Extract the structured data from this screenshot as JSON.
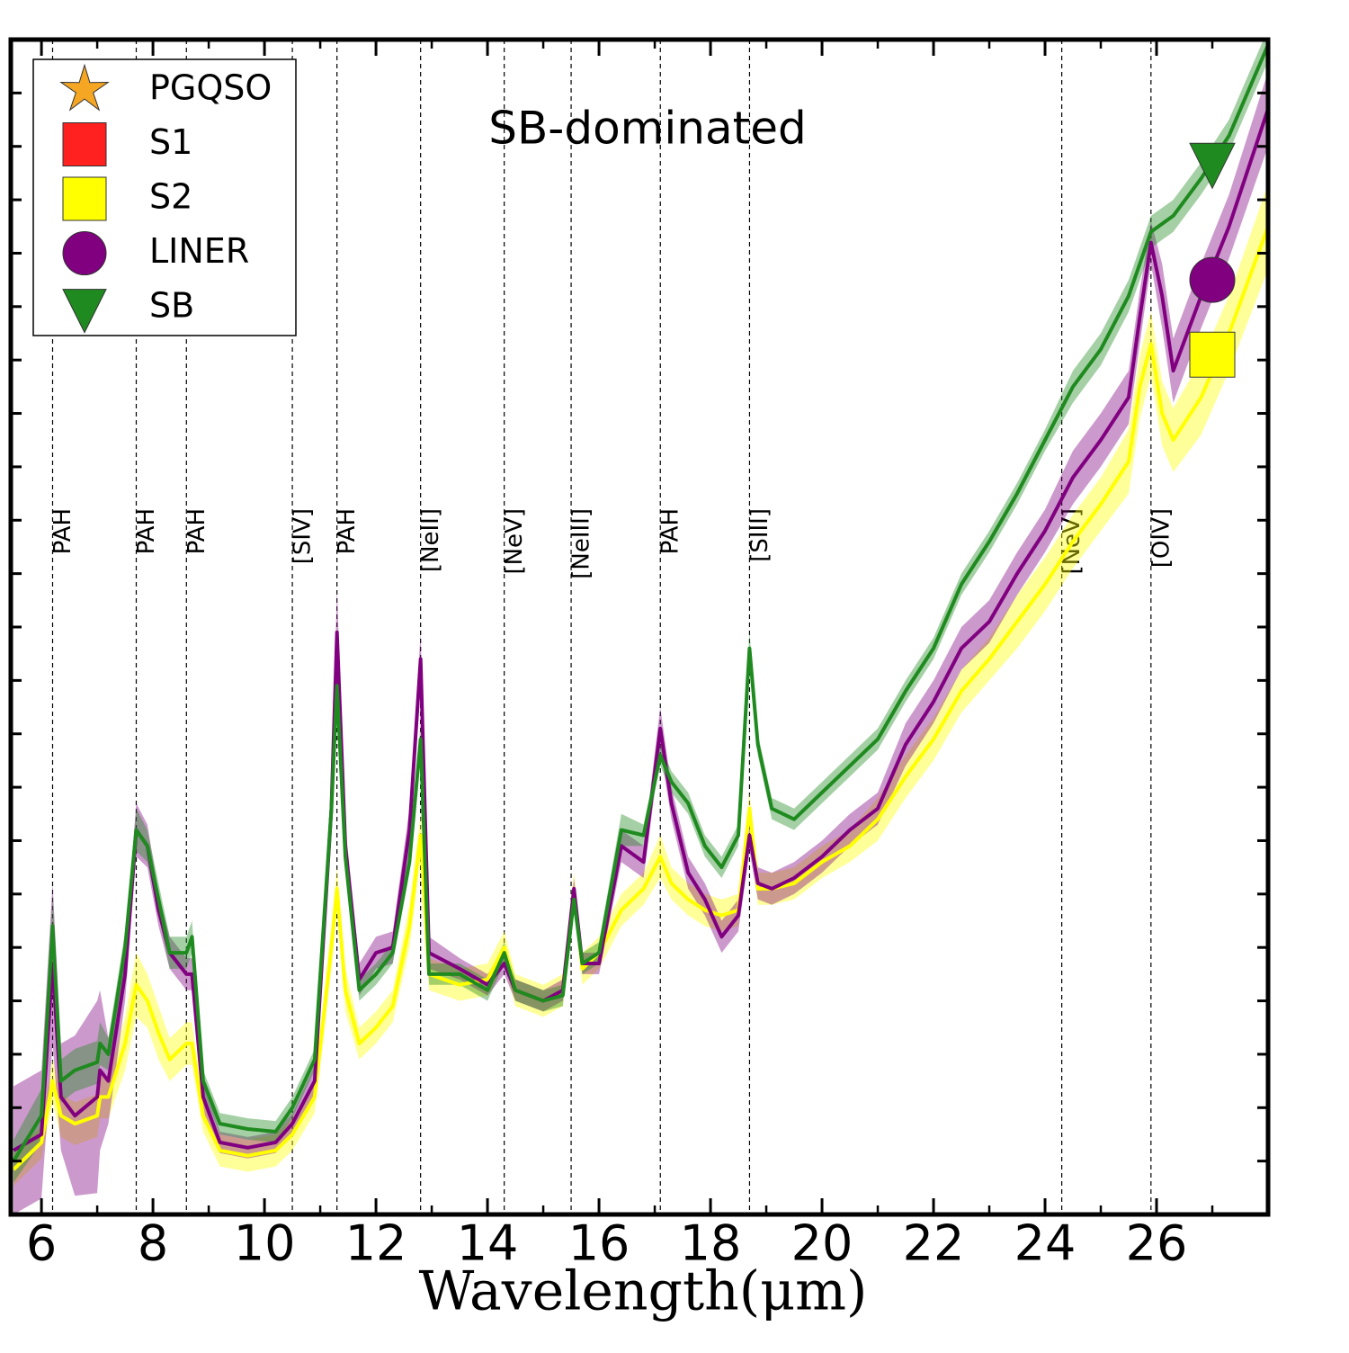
{
  "chart_data": {
    "type": "line",
    "title": "SB-dominated",
    "x_label": "Wavelength(μm)",
    "xlim": [
      5.45,
      28
    ],
    "xticks": [
      6,
      8,
      10,
      12,
      14,
      16,
      18,
      20,
      22,
      24,
      26
    ],
    "xminorticks": [
      7,
      9,
      11,
      13,
      15,
      17,
      19,
      21,
      23,
      25,
      27
    ],
    "ylim": [
      0,
      22
    ],
    "yticks": [
      1,
      2,
      3,
      4,
      5,
      6,
      7,
      8,
      9,
      10,
      11,
      12,
      13,
      14,
      15,
      16,
      17,
      18,
      19,
      20,
      21
    ],
    "legend": "upper left",
    "lines": [
      {
        "x": 6.2,
        "label": "PAH"
      },
      {
        "x": 7.7,
        "label": "PAH"
      },
      {
        "x": 8.6,
        "label": "PAH"
      },
      {
        "x": 10.5,
        "label": "[SIV]"
      },
      {
        "x": 11.3,
        "label": "PAH"
      },
      {
        "x": 12.8,
        "label": "[NeII]"
      },
      {
        "x": 14.3,
        "label": "[NeV]"
      },
      {
        "x": 15.5,
        "label": "[NeIII]"
      },
      {
        "x": 17.1,
        "label": "PAH"
      },
      {
        "x": 18.7,
        "label": "[SIII]"
      },
      {
        "x": 24.3,
        "label": "[NeV]"
      },
      {
        "x": 25.9,
        "label": "[OIV]"
      }
    ],
    "series": [
      {
        "name": "PGQSO",
        "color": "#f5a623",
        "marker": "star"
      },
      {
        "name": "S1",
        "color": "#ff2020",
        "marker": "square"
      },
      {
        "name": "S2",
        "color": "#ffff00",
        "marker": "square",
        "point_x": 27.0,
        "point_y": 16.1,
        "x": [
          5.5,
          6.0,
          6.2,
          6.35,
          6.6,
          7.0,
          7.05,
          7.2,
          7.5,
          7.7,
          7.9,
          8.1,
          8.3,
          8.6,
          8.7,
          8.9,
          9.2,
          9.7,
          10.2,
          10.5,
          10.9,
          11.2,
          11.3,
          11.45,
          11.7,
          12.0,
          12.3,
          12.6,
          12.8,
          12.95,
          13.5,
          14.0,
          14.3,
          14.5,
          15.0,
          15.35,
          15.55,
          15.7,
          16.0,
          16.4,
          16.8,
          17.1,
          17.3,
          17.6,
          17.9,
          18.2,
          18.5,
          18.7,
          18.85,
          19.1,
          19.5,
          20.0,
          20.5,
          21.0,
          21.5,
          22.0,
          22.5,
          23.0,
          23.5,
          24.0,
          24.5,
          25.0,
          25.5,
          25.7,
          25.9,
          26.1,
          26.3,
          26.8,
          27.3,
          28.0
        ],
        "values": [
          0.84,
          1.35,
          2.5,
          1.85,
          1.7,
          1.85,
          2.2,
          2.2,
          3.2,
          4.3,
          4.0,
          3.4,
          2.9,
          3.2,
          3.2,
          1.85,
          1.2,
          1.1,
          1.2,
          1.5,
          2.2,
          5.0,
          6.1,
          4.2,
          3.2,
          3.5,
          3.9,
          5.4,
          7.1,
          4.5,
          4.3,
          4.4,
          5.0,
          4.2,
          4.0,
          4.2,
          6.1,
          4.6,
          4.9,
          5.7,
          6.1,
          6.7,
          6.2,
          5.9,
          5.7,
          5.6,
          5.7,
          7.6,
          6.1,
          6.1,
          6.2,
          6.6,
          6.9,
          7.4,
          8.2,
          8.9,
          9.8,
          10.4,
          11.1,
          11.8,
          12.6,
          13.3,
          14.1,
          15.5,
          16.3,
          15.0,
          14.5,
          15.3,
          16.5,
          18.5
        ],
        "errors": [
          0.3,
          0.3,
          0.4,
          0.4,
          0.4,
          0.4,
          0.4,
          0.4,
          0.5,
          0.6,
          0.5,
          0.5,
          0.4,
          0.4,
          0.4,
          0.3,
          0.3,
          0.3,
          0.3,
          0.3,
          0.3,
          0.4,
          0.4,
          0.4,
          0.3,
          0.3,
          0.3,
          0.4,
          0.4,
          0.3,
          0.3,
          0.3,
          0.3,
          0.3,
          0.3,
          0.3,
          0.3,
          0.3,
          0.3,
          0.3,
          0.3,
          0.4,
          0.3,
          0.3,
          0.3,
          0.3,
          0.3,
          0.3,
          0.3,
          0.3,
          0.3,
          0.3,
          0.3,
          0.4,
          0.4,
          0.4,
          0.4,
          0.4,
          0.5,
          0.5,
          0.5,
          0.5,
          0.6,
          0.6,
          0.6,
          0.6,
          0.6,
          0.7,
          0.7,
          0.8
        ]
      },
      {
        "name": "LINER",
        "color": "#800080",
        "marker": "circle",
        "point_x": 27.0,
        "point_y": 17.5,
        "x": [
          5.5,
          6.0,
          6.2,
          6.35,
          6.6,
          7.0,
          7.05,
          7.2,
          7.5,
          7.7,
          7.9,
          8.1,
          8.3,
          8.6,
          8.7,
          8.9,
          9.2,
          9.7,
          10.2,
          10.5,
          10.9,
          11.2,
          11.3,
          11.45,
          11.7,
          12.0,
          12.3,
          12.6,
          12.8,
          12.95,
          13.5,
          14.0,
          14.3,
          14.5,
          15.0,
          15.35,
          15.55,
          15.7,
          16.0,
          16.4,
          16.8,
          17.1,
          17.3,
          17.6,
          17.9,
          18.2,
          18.5,
          18.7,
          18.85,
          19.1,
          19.5,
          20.0,
          20.5,
          21.0,
          21.5,
          22.0,
          22.5,
          23.0,
          23.5,
          24.0,
          24.5,
          25.0,
          25.5,
          25.7,
          25.9,
          26.1,
          26.3,
          26.8,
          27.3,
          28.0
        ],
        "values": [
          1.2,
          1.5,
          4.7,
          2.2,
          1.85,
          2.2,
          2.7,
          2.5,
          4.5,
          7.2,
          6.9,
          5.7,
          4.9,
          4.5,
          4.5,
          2.2,
          1.35,
          1.25,
          1.35,
          1.7,
          2.5,
          7.6,
          10.9,
          6.9,
          4.4,
          4.9,
          5.0,
          7.2,
          10.4,
          4.9,
          4.6,
          4.3,
          4.7,
          4.2,
          4.0,
          4.2,
          6.1,
          4.7,
          4.7,
          6.9,
          6.6,
          9.1,
          7.7,
          6.4,
          5.9,
          5.2,
          5.6,
          7.1,
          6.2,
          6.1,
          6.3,
          6.7,
          7.2,
          7.6,
          8.8,
          9.6,
          10.6,
          11.1,
          12.0,
          12.8,
          13.8,
          14.5,
          15.3,
          16.8,
          18.2,
          17.2,
          15.8,
          17.2,
          18.5,
          20.7
        ],
        "errors": [
          1.2,
          1.2,
          1.5,
          1.0,
          1.5,
          1.8,
          1.5,
          0.8,
          0.5,
          0.5,
          0.4,
          0.3,
          0.3,
          0.3,
          0.3,
          0.3,
          0.2,
          0.2,
          0.2,
          0.2,
          0.3,
          0.4,
          0.8,
          0.4,
          0.3,
          0.3,
          0.3,
          0.4,
          0.5,
          0.3,
          0.2,
          0.2,
          0.2,
          0.2,
          0.2,
          0.2,
          0.2,
          0.2,
          0.2,
          0.3,
          0.3,
          0.4,
          0.3,
          0.3,
          0.3,
          0.3,
          0.3,
          0.3,
          0.3,
          0.3,
          0.3,
          0.3,
          0.3,
          0.3,
          0.4,
          0.4,
          0.4,
          0.4,
          0.4,
          0.4,
          0.5,
          0.5,
          0.5,
          0.5,
          0.4,
          0.6,
          0.6,
          0.6,
          0.6,
          0.7
        ]
      },
      {
        "name": "SB",
        "color": "#1f8a1f",
        "marker": "triangle",
        "point_x": 27.0,
        "point_y": 19.7,
        "x": [
          5.5,
          6.0,
          6.2,
          6.35,
          6.6,
          7.0,
          7.05,
          7.2,
          7.5,
          7.7,
          7.9,
          8.1,
          8.3,
          8.6,
          8.7,
          8.9,
          9.2,
          9.7,
          10.2,
          10.5,
          10.9,
          11.2,
          11.3,
          11.45,
          11.7,
          12.0,
          12.3,
          12.6,
          12.8,
          12.95,
          13.5,
          14.0,
          14.3,
          14.5,
          15.0,
          15.35,
          15.55,
          15.7,
          16.0,
          16.4,
          16.8,
          17.1,
          17.3,
          17.6,
          17.9,
          18.2,
          18.5,
          18.7,
          18.85,
          19.1,
          19.5,
          20.0,
          20.5,
          21.0,
          21.5,
          22.0,
          22.5,
          23.0,
          23.5,
          24.0,
          24.5,
          25.0,
          25.5,
          25.9,
          26.3,
          26.8,
          27.3,
          28.0
        ],
        "values": [
          1.0,
          1.85,
          5.4,
          2.5,
          2.7,
          2.85,
          3.2,
          3.0,
          5.0,
          7.2,
          6.9,
          5.9,
          4.9,
          4.9,
          5.2,
          2.5,
          1.7,
          1.6,
          1.55,
          2.0,
          2.9,
          7.6,
          9.9,
          6.7,
          4.2,
          4.5,
          4.9,
          6.6,
          8.9,
          4.5,
          4.5,
          4.2,
          4.9,
          4.2,
          4.0,
          4.1,
          5.9,
          4.7,
          4.9,
          7.2,
          7.1,
          8.6,
          8.1,
          7.7,
          6.9,
          6.5,
          7.1,
          10.6,
          8.8,
          7.6,
          7.4,
          7.9,
          8.4,
          8.9,
          9.8,
          10.6,
          11.8,
          12.6,
          13.5,
          14.5,
          15.5,
          16.2,
          17.2,
          18.4,
          18.7,
          19.4,
          20.2,
          21.9
        ],
        "errors": [
          0.4,
          0.5,
          0.6,
          0.4,
          0.4,
          0.4,
          0.4,
          0.3,
          0.3,
          0.4,
          0.3,
          0.3,
          0.3,
          0.3,
          0.3,
          0.2,
          0.2,
          0.2,
          0.2,
          0.2,
          0.2,
          0.3,
          0.3,
          0.3,
          0.2,
          0.2,
          0.2,
          0.2,
          0.3,
          0.2,
          0.2,
          0.2,
          0.2,
          0.2,
          0.2,
          0.2,
          0.2,
          0.2,
          0.2,
          0.3,
          0.2,
          0.2,
          0.2,
          0.2,
          0.2,
          0.2,
          0.2,
          0.3,
          0.2,
          0.2,
          0.2,
          0.2,
          0.2,
          0.2,
          0.2,
          0.2,
          0.2,
          0.2,
          0.2,
          0.2,
          0.3,
          0.3,
          0.3,
          0.3,
          0.3,
          0.3,
          0.3,
          0.3
        ]
      }
    ]
  }
}
